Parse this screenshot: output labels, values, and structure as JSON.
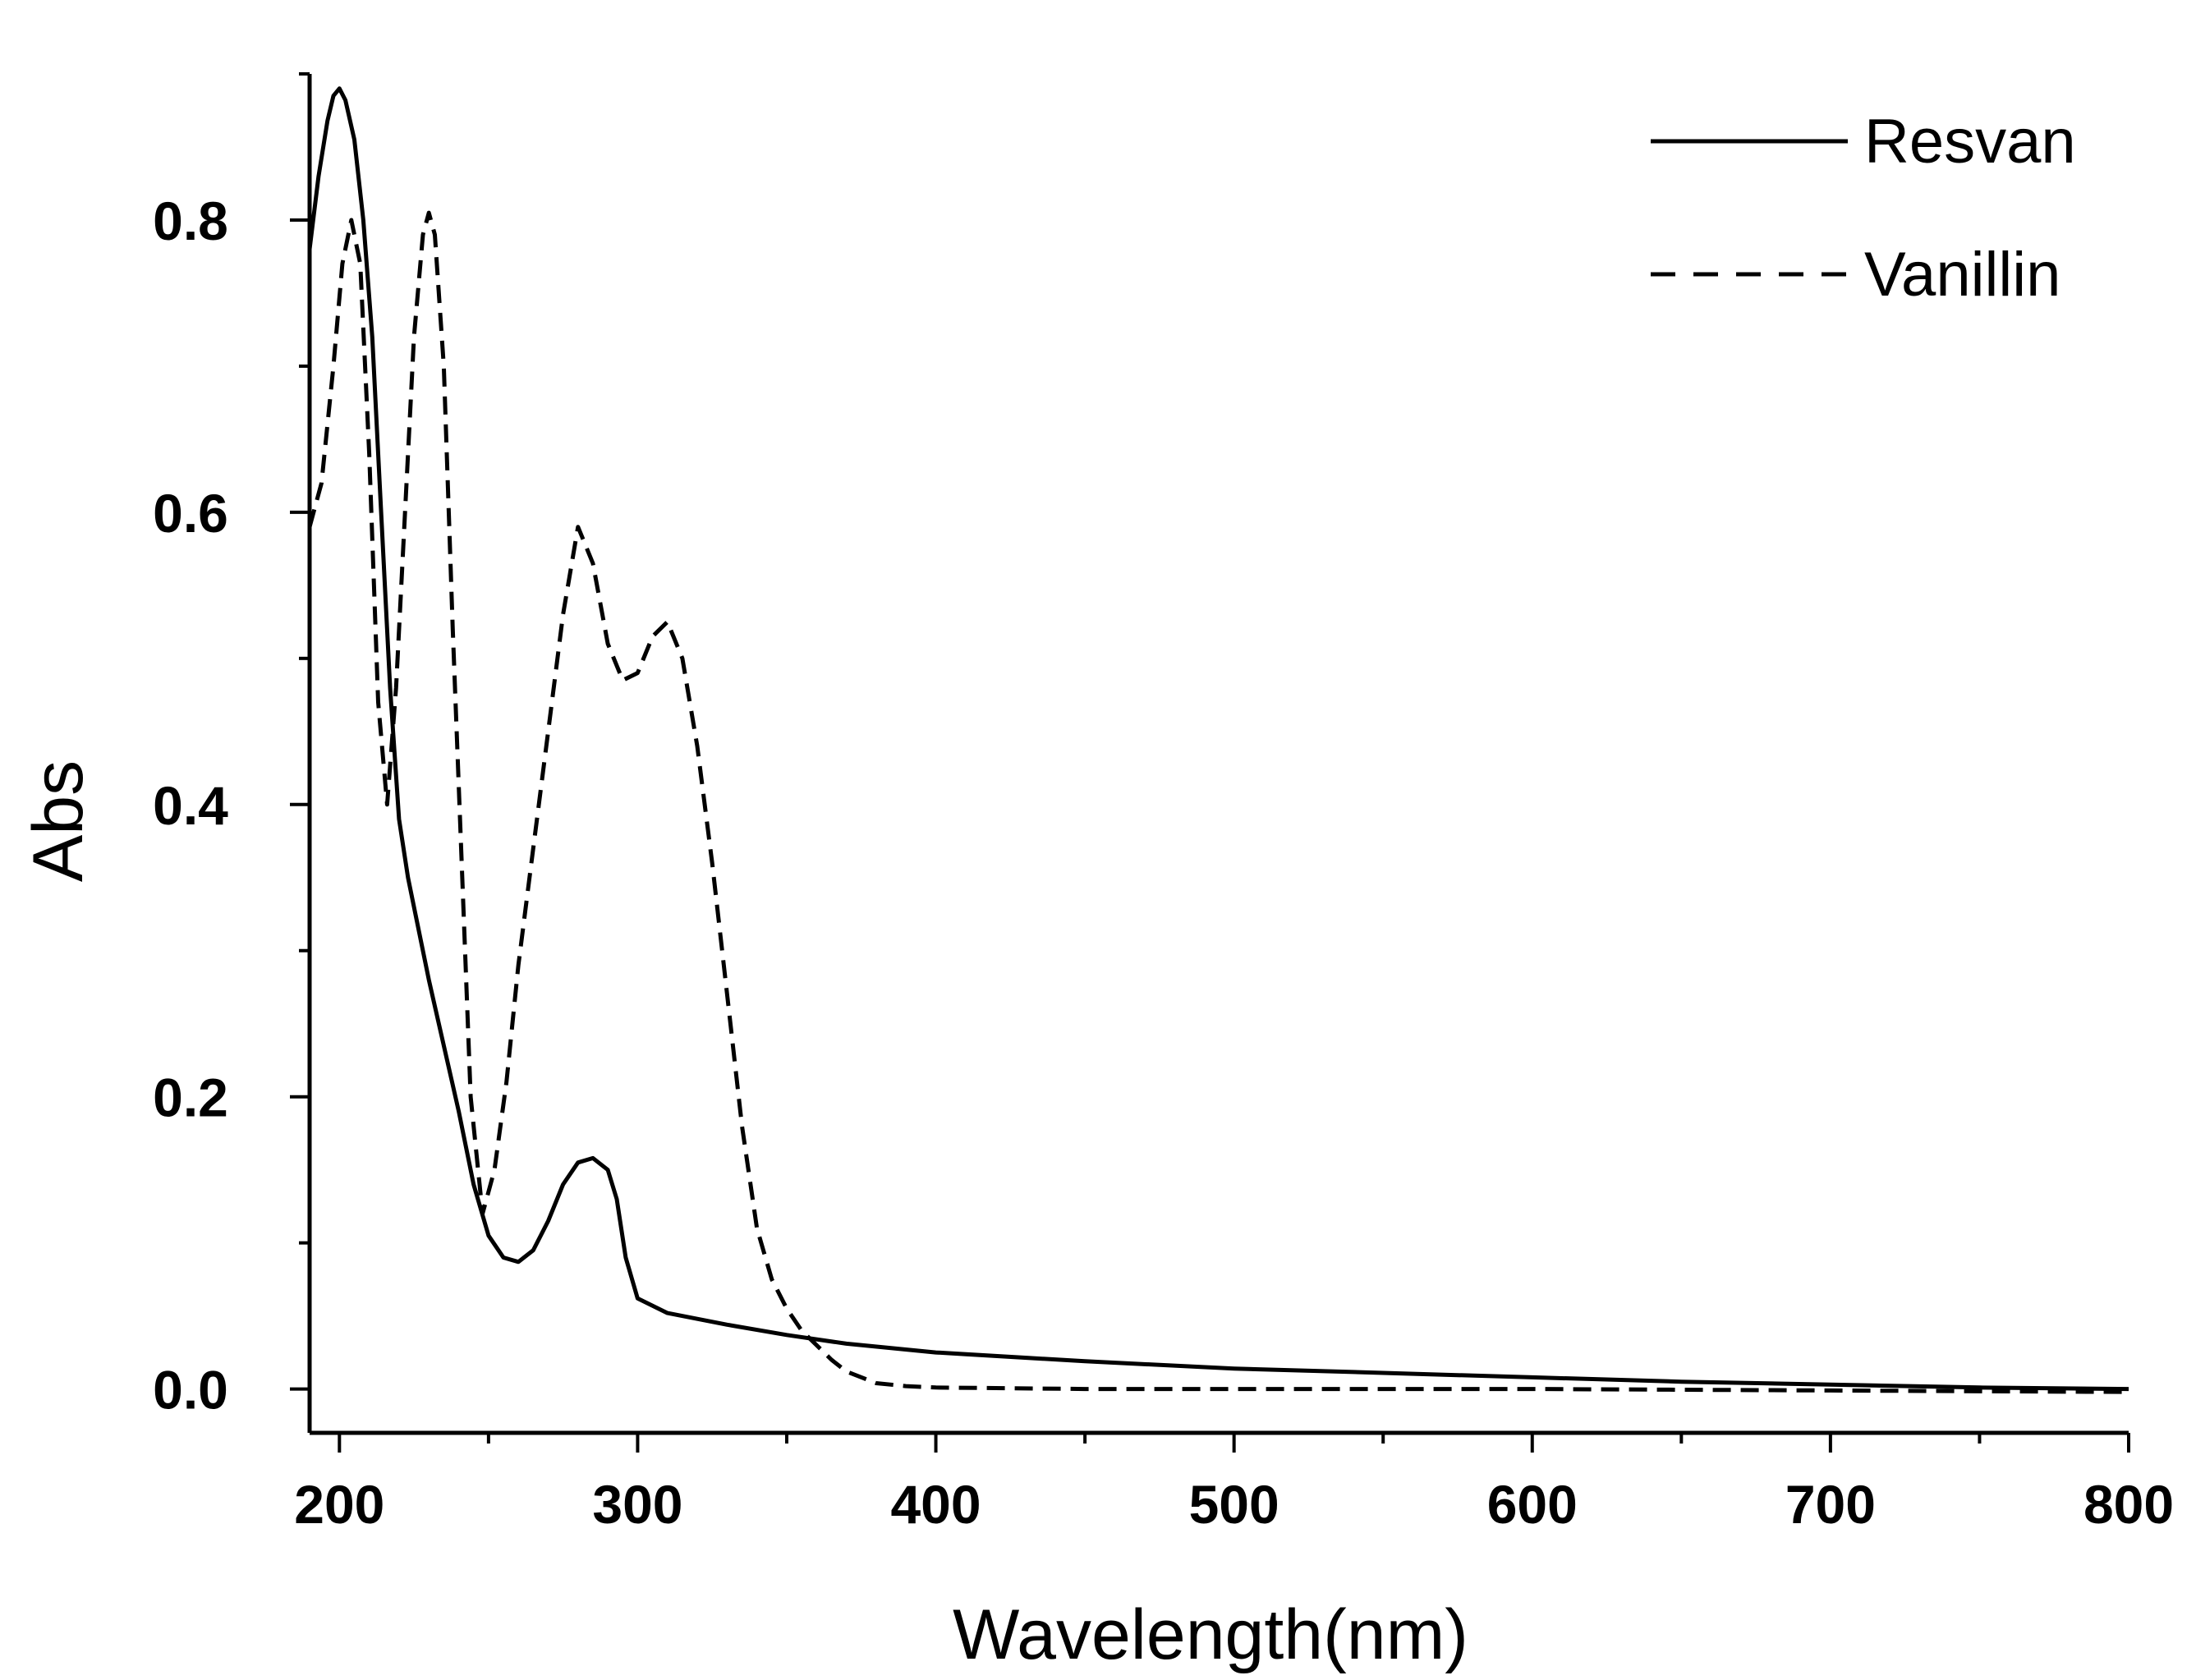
{
  "chart_data": {
    "type": "line",
    "title": "",
    "xlabel": "Wavelength(nm)",
    "ylabel": "Abs",
    "xlim": [
      190,
      800
    ],
    "ylim": [
      -0.03,
      0.9
    ],
    "x_ticks": [
      200,
      300,
      400,
      500,
      600,
      700,
      800
    ],
    "x_tick_labels": [
      "200",
      "300",
      "400",
      "500",
      "600",
      "700",
      "800"
    ],
    "y_ticks": [
      0.0,
      0.2,
      0.4,
      0.6,
      0.8
    ],
    "y_tick_labels": [
      "0.0",
      "0.2",
      "0.4",
      "0.6",
      "0.8"
    ],
    "legend_position": "top-right",
    "legend": [
      {
        "name": "Resvan",
        "style": "solid"
      },
      {
        "name": "Vanillin",
        "style": "dashed"
      }
    ],
    "series": [
      {
        "name": "Resvan",
        "style": "solid",
        "color": "#000000",
        "x": [
          190,
          193,
          196,
          198,
          200,
          202,
          205,
          208,
          211,
          214,
          217,
          220,
          223,
          226,
          230,
          235,
          240,
          245,
          250,
          255,
          260,
          265,
          270,
          275,
          280,
          285,
          290,
          293,
          296,
          300,
          310,
          330,
          350,
          370,
          400,
          450,
          500,
          550,
          600,
          650,
          700,
          750,
          800
        ],
        "y": [
          0.78,
          0.83,
          0.868,
          0.885,
          0.89,
          0.882,
          0.855,
          0.8,
          0.72,
          0.6,
          0.48,
          0.39,
          0.35,
          0.32,
          0.28,
          0.235,
          0.19,
          0.14,
          0.105,
          0.09,
          0.087,
          0.095,
          0.115,
          0.14,
          0.155,
          0.158,
          0.15,
          0.13,
          0.09,
          0.062,
          0.052,
          0.044,
          0.037,
          0.031,
          0.025,
          0.019,
          0.014,
          0.011,
          0.008,
          0.005,
          0.003,
          0.001,
          0.0
        ]
      },
      {
        "name": "Vanillin",
        "style": "dashed",
        "color": "#000000",
        "x": [
          190,
          194,
          198,
          201,
          204,
          207,
          210,
          213,
          216,
          219,
          222,
          225,
          228,
          230,
          232,
          235,
          238,
          241,
          244,
          248,
          252,
          256,
          260,
          265,
          270,
          275,
          280,
          285,
          290,
          295,
          300,
          305,
          310,
          315,
          320,
          325,
          330,
          335,
          340,
          345,
          350,
          355,
          360,
          365,
          370,
          380,
          390,
          400,
          450,
          500,
          600,
          700,
          800
        ],
        "y": [
          0.59,
          0.62,
          0.7,
          0.77,
          0.8,
          0.77,
          0.64,
          0.47,
          0.4,
          0.48,
          0.6,
          0.72,
          0.79,
          0.805,
          0.79,
          0.7,
          0.52,
          0.36,
          0.2,
          0.12,
          0.15,
          0.21,
          0.29,
          0.37,
          0.45,
          0.53,
          0.59,
          0.565,
          0.51,
          0.485,
          0.49,
          0.515,
          0.525,
          0.5,
          0.44,
          0.36,
          0.27,
          0.18,
          0.11,
          0.075,
          0.055,
          0.04,
          0.03,
          0.02,
          0.012,
          0.004,
          0.002,
          0.001,
          0.0,
          0.0,
          0.0,
          -0.001,
          -0.002
        ]
      }
    ]
  }
}
